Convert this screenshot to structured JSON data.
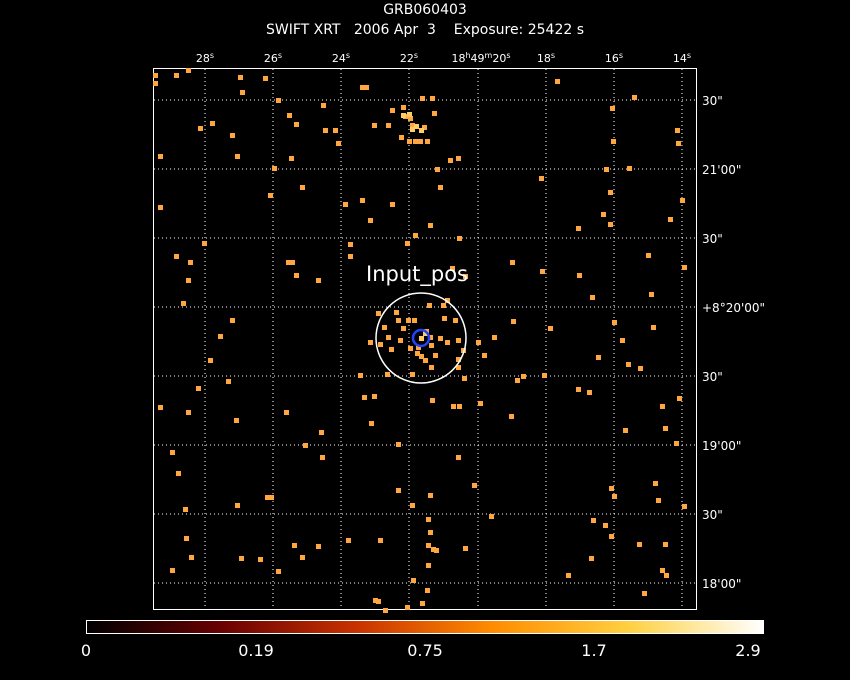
{
  "header": {
    "object": "GRB060403",
    "info": "SWIFT XRT   2006 Apr  3    Exposure: 25422 s"
  },
  "plot": {
    "annotation": "Input_pos",
    "ra_ticks": [
      "28s",
      "26s",
      "24s",
      "22s",
      "18h49m20s",
      "18s",
      "16s",
      "14s"
    ],
    "dec_ticks": [
      "30\"",
      "21'00\"",
      "30\"",
      "+8°20'00\"",
      "30\"",
      "19'00\"",
      "30\"",
      "18'00\""
    ],
    "grid": true
  },
  "colorbar": {
    "labels": [
      "0",
      "0.19",
      "0.75",
      "1.7",
      "2.9"
    ],
    "colors": [
      "#000000",
      "#6a0000",
      "#c83200",
      "#ff8c00",
      "#ffd040",
      "#ffffff"
    ]
  },
  "colors": {
    "event": "#ffa640",
    "event_bright": "#ffcc66",
    "grid": "#ffffff",
    "source_circle": "#2244ff",
    "extraction_circle": "#ffffff"
  }
}
